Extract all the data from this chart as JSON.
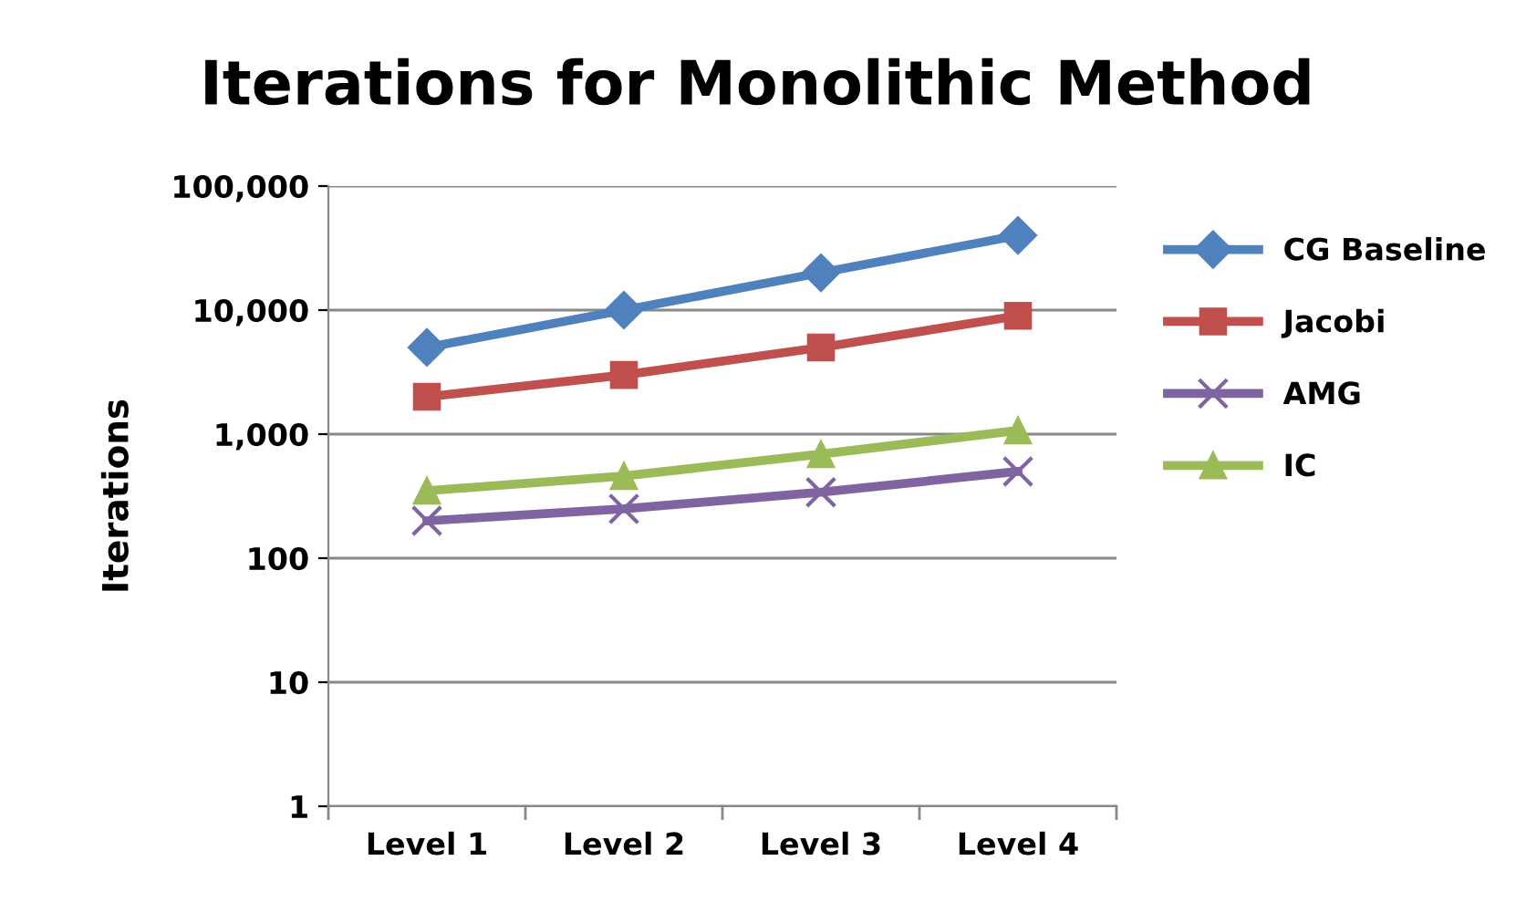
{
  "chart_data": {
    "type": "line",
    "title": "Iterations for Monolithic Method",
    "ylabel": "Iterations",
    "categories": [
      "Level 1",
      "Level 2",
      "Level 3",
      "Level 4"
    ],
    "series": [
      {
        "name": "CG Baseline",
        "color": "#4f81bd",
        "marker": "diamond",
        "values": [
          5000,
          10000,
          20000,
          40000
        ]
      },
      {
        "name": "Jacobi",
        "color": "#c0504d",
        "marker": "square",
        "values": [
          2000,
          3000,
          5000,
          9000
        ]
      },
      {
        "name": "AMG",
        "color": "#8064a2",
        "marker": "cross",
        "values": [
          200,
          250,
          340,
          500
        ]
      },
      {
        "name": "IC",
        "color": "#9bbb59",
        "marker": "triangle",
        "values": [
          350,
          460,
          690,
          1070
        ]
      }
    ],
    "log": "y",
    "ylim": [
      1,
      100000
    ],
    "yticks": [
      1,
      10,
      {
        "value": 100,
        "label": "100"
      },
      {
        "value": 1000,
        "label": "1,000"
      },
      {
        "value": 10000,
        "label": "10,000"
      },
      {
        "value": 100000,
        "label": "100,000"
      }
    ],
    "grid": "y",
    "legend": "right",
    "line_style": "solid"
  }
}
